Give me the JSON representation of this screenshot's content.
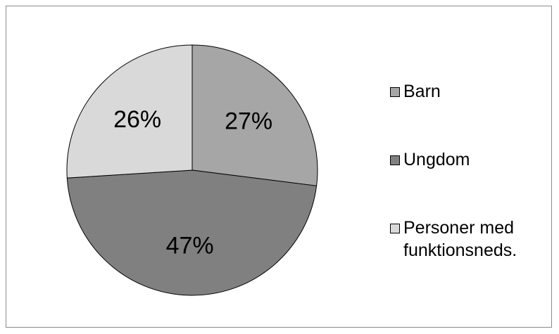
{
  "chart_data": {
    "type": "pie",
    "categories": [
      "Barn",
      "Ungdom",
      "Personer med funktionsneds."
    ],
    "values": [
      27,
      47,
      26
    ],
    "data_labels": [
      "27%",
      "47%",
      "26%"
    ],
    "colors": [
      "#a6a6a6",
      "#808080",
      "#d9d9d9"
    ],
    "legend": {
      "placement": "right",
      "entries": [
        {
          "line1": "Barn",
          "line2": ""
        },
        {
          "line1": "Ungdom",
          "line2": ""
        },
        {
          "line1": "Personer med",
          "line2": "funktionsneds."
        }
      ]
    }
  }
}
